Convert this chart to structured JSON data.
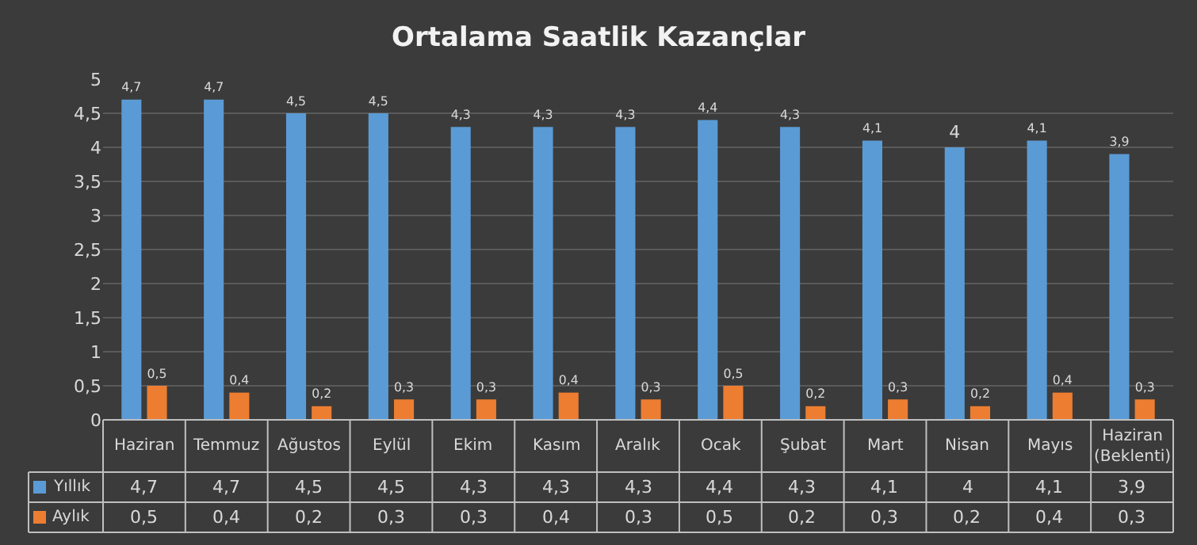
{
  "chart_data": {
    "type": "bar",
    "title": "Ortalama Saatlik Kazançlar",
    "categories": [
      "Haziran",
      "Temmuz",
      "Ağustos",
      "Eylül",
      "Ekim",
      "Kasım",
      "Aralık",
      "Ocak",
      "Şubat",
      "Mart",
      "Nisan",
      "Mayıs",
      "Haziran\n(Beklenti)"
    ],
    "series": [
      {
        "name": "Yıllık",
        "color": "#5b9bd5",
        "values": [
          4.7,
          4.7,
          4.5,
          4.5,
          4.3,
          4.3,
          4.3,
          4.4,
          4.3,
          4.1,
          4.0,
          4.1,
          3.9
        ],
        "value_labels": [
          "4,7",
          "4,7",
          "4,5",
          "4,5",
          "4,3",
          "4,3",
          "4,3",
          "4,4",
          "4,3",
          "4,1",
          "4",
          "4,1",
          "3,9"
        ]
      },
      {
        "name": "Aylık",
        "color": "#ed7d31",
        "values": [
          0.5,
          0.4,
          0.2,
          0.3,
          0.3,
          0.4,
          0.3,
          0.5,
          0.2,
          0.3,
          0.2,
          0.4,
          0.3
        ],
        "value_labels": [
          "0,5",
          "0,4",
          "0,2",
          "0,3",
          "0,3",
          "0,4",
          "0,3",
          "0,5",
          "0,2",
          "0,3",
          "0,2",
          "0,4",
          "0,3"
        ]
      }
    ],
    "ylim": [
      0,
      5
    ],
    "yticks": [
      0,
      {
        "value": 0.5,
        "label": "0,5"
      },
      1,
      {
        "value": 1.5,
        "label": "1,5"
      },
      2,
      {
        "value": 2.5,
        "label": "2,5"
      },
      3,
      {
        "value": 3.5,
        "label": "3,5"
      },
      4,
      {
        "value": 4.5,
        "label": "4,5"
      },
      5
    ],
    "grid": "y",
    "legend": "bottom left"
  }
}
